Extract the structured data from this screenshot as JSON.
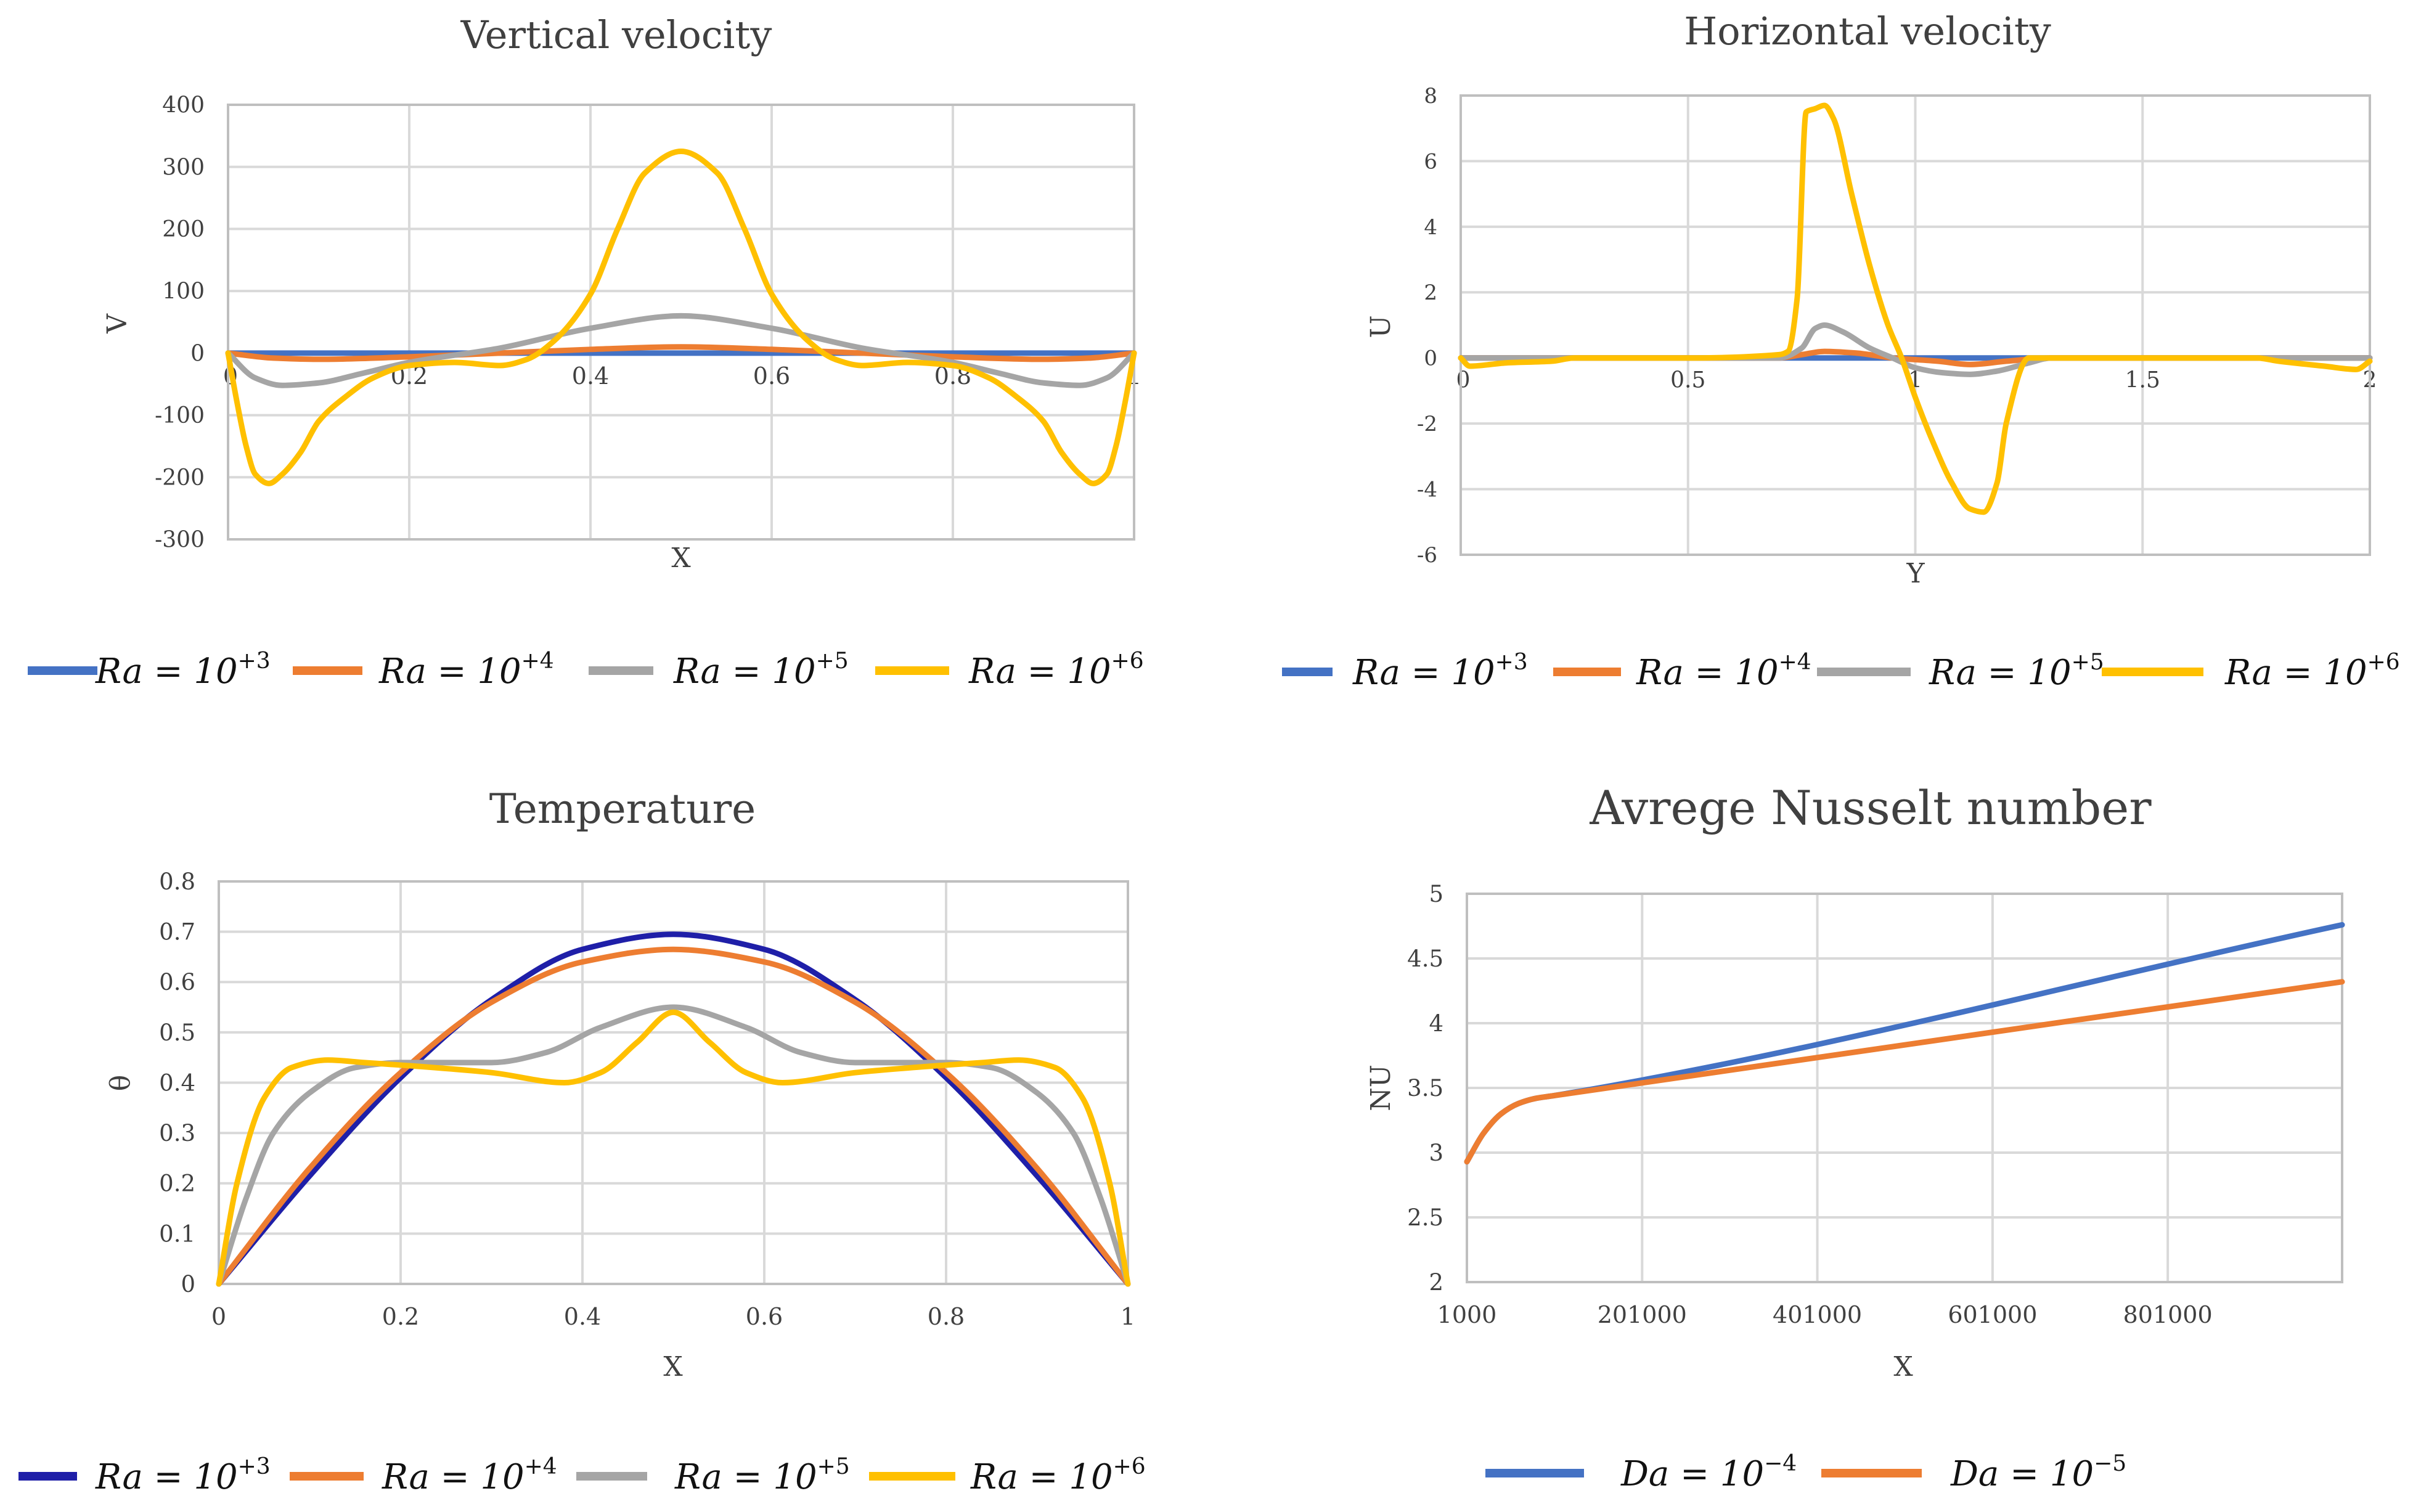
{
  "colors": {
    "blue": "#4472C4",
    "navy": "#1F1FA8",
    "orange": "#ED7D31",
    "gray": "#A5A5A5",
    "yellow": "#FFC000",
    "grid": "#D9D9D9",
    "axis": "#BFBFBF",
    "text": "#404040"
  },
  "chart_data": [
    {
      "id": "vertical",
      "type": "line",
      "title": "Vertical velocity",
      "xlabel": "X",
      "ylabel": "V",
      "xlim": [
        0,
        1
      ],
      "ylim": [
        -300,
        400
      ],
      "xticks": [
        0,
        0.2,
        0.4,
        0.6,
        0.8,
        1
      ],
      "xtick_labels": [
        "0",
        "0.2",
        "0.4",
        "0.6",
        "0.8",
        "1"
      ],
      "yticks": [
        400,
        300,
        200,
        100,
        0,
        -100,
        -200,
        -300
      ],
      "ytick_labels": [
        "400",
        "300",
        "200",
        "100",
        "0",
        "-100",
        "-200",
        "-300"
      ],
      "series": [
        {
          "name": "Ra = 10+3",
          "color": "blue",
          "x": [
            0,
            0.5,
            1
          ],
          "y": [
            0,
            0,
            0
          ]
        },
        {
          "name": "Ra = 10+4",
          "color": "orange",
          "x": [
            0,
            0.05,
            0.1,
            0.2,
            0.3,
            0.4,
            0.5,
            0.6,
            0.7,
            0.8,
            0.9,
            0.95,
            1
          ],
          "y": [
            0,
            -8,
            -10,
            -6,
            0,
            6,
            10,
            6,
            0,
            -6,
            -10,
            -8,
            0
          ]
        },
        {
          "name": "Ra = 10+5",
          "color": "gray",
          "x": [
            0,
            0.03,
            0.06,
            0.1,
            0.15,
            0.2,
            0.3,
            0.4,
            0.5,
            0.6,
            0.7,
            0.8,
            0.85,
            0.9,
            0.94,
            0.97,
            1
          ],
          "y": [
            0,
            -40,
            -52,
            -48,
            -32,
            -15,
            8,
            40,
            60,
            40,
            8,
            -15,
            -32,
            -48,
            -52,
            -40,
            0
          ]
        },
        {
          "name": "Ra = 10+6",
          "color": "yellow",
          "x": [
            0,
            0.01,
            0.02,
            0.03,
            0.045,
            0.06,
            0.08,
            0.1,
            0.13,
            0.16,
            0.2,
            0.25,
            0.3,
            0.33,
            0.36,
            0.4,
            0.43,
            0.46,
            0.5,
            0.54,
            0.57,
            0.6,
            0.64,
            0.67,
            0.7,
            0.75,
            0.8,
            0.84,
            0.87,
            0.9,
            0.92,
            0.94,
            0.955,
            0.97,
            0.98,
            0.99,
            1
          ],
          "y": [
            0,
            -80,
            -150,
            -195,
            -210,
            -195,
            -160,
            -110,
            -70,
            -40,
            -20,
            -15,
            -20,
            -10,
            20,
            95,
            200,
            290,
            325,
            290,
            200,
            95,
            20,
            -10,
            -20,
            -15,
            -20,
            -40,
            -70,
            -110,
            -160,
            -195,
            -210,
            -195,
            -150,
            -80,
            0
          ]
        }
      ],
      "legend": [
        "Ra = 10",
        "Ra = 10",
        "Ra = 10",
        "Ra = 10"
      ],
      "legend_exp": [
        "+3",
        "+4",
        "+5",
        "+6"
      ]
    },
    {
      "id": "horizontal",
      "type": "line",
      "title": "Horizontal velocity",
      "xlabel": "Y",
      "ylabel": "U",
      "xlim": [
        0,
        2
      ],
      "ylim": [
        -6,
        8
      ],
      "xticks": [
        0,
        0.5,
        1,
        1.5,
        2
      ],
      "xtick_labels": [
        "0",
        "0.5",
        "1",
        "1.5",
        "2"
      ],
      "yticks": [
        8,
        6,
        4,
        2,
        0,
        -2,
        -4,
        -6
      ],
      "ytick_labels": [
        "8",
        "6",
        "4",
        "2",
        "0",
        "-2",
        "-4",
        "-6"
      ],
      "series": [
        {
          "name": "Ra = 10+3",
          "color": "blue",
          "x": [
            0,
            1,
            2
          ],
          "y": [
            0,
            0,
            0
          ]
        },
        {
          "name": "Ra = 10+4",
          "color": "orange",
          "x": [
            0,
            0.7,
            0.75,
            0.8,
            0.87,
            0.95,
            1.05,
            1.12,
            1.2,
            1.3,
            2
          ],
          "y": [
            0,
            0,
            0.1,
            0.2,
            0.15,
            0,
            -0.1,
            -0.2,
            -0.1,
            0,
            0
          ]
        },
        {
          "name": "Ra = 10+5",
          "color": "gray",
          "x": [
            0,
            0.7,
            0.75,
            0.78,
            0.8,
            0.84,
            0.9,
            0.95,
            1.0,
            1.06,
            1.12,
            1.18,
            1.25,
            1.3,
            2
          ],
          "y": [
            0,
            0,
            0.3,
            0.9,
            1.0,
            0.8,
            0.3,
            0,
            -0.3,
            -0.45,
            -0.5,
            -0.4,
            -0.15,
            0,
            0
          ]
        },
        {
          "name": "Ra = 10+6",
          "color": "yellow",
          "x": [
            0,
            0.02,
            0.1,
            0.2,
            0.25,
            0.5,
            0.7,
            0.72,
            0.74,
            0.76,
            0.78,
            0.8,
            0.82,
            0.86,
            0.9,
            0.94,
            0.97,
            1.0,
            1.04,
            1.08,
            1.12,
            1.15,
            1.18,
            1.2,
            1.25,
            1.5,
            1.75,
            1.8,
            1.9,
            1.97,
            2
          ],
          "y": [
            0,
            -0.25,
            -0.15,
            -0.1,
            0,
            0,
            0.1,
            0.2,
            1.8,
            7.5,
            7.6,
            7.7,
            7.3,
            5.0,
            2.8,
            1.0,
            0,
            -1.2,
            -2.6,
            -3.8,
            -4.6,
            -4.7,
            -3.8,
            -2.0,
            0,
            0,
            0,
            -0.1,
            -0.25,
            -0.35,
            -0.1
          ]
        }
      ],
      "legend": [
        "Ra = 10",
        "Ra = 10",
        "Ra = 10",
        "Ra = 10"
      ],
      "legend_exp": [
        "+3",
        "+4",
        "+5",
        "+6"
      ]
    },
    {
      "id": "temperature",
      "type": "line",
      "title": "Temperature",
      "xlabel": "X",
      "ylabel": "θ",
      "xlim": [
        0,
        1
      ],
      "ylim": [
        0,
        0.8
      ],
      "xticks": [
        0,
        0.2,
        0.4,
        0.6,
        0.8,
        1
      ],
      "xtick_labels": [
        "0",
        "0.2",
        "0.4",
        "0.6",
        "0.8",
        "1"
      ],
      "yticks": [
        0.8,
        0.7,
        0.6,
        0.5,
        0.4,
        0.3,
        0.2,
        0.1,
        0
      ],
      "ytick_labels": [
        "0.8",
        "0.7",
        "0.6",
        "0.5",
        "0.4",
        "0.3",
        "0.2",
        "0.1",
        "0"
      ],
      "series": [
        {
          "name": "Ra = 10+3",
          "color": "navy",
          "x": [
            0,
            0.1,
            0.2,
            0.3,
            0.4,
            0.5,
            0.6,
            0.7,
            0.8,
            0.9,
            1
          ],
          "y": [
            0,
            0.215,
            0.41,
            0.565,
            0.665,
            0.695,
            0.665,
            0.565,
            0.41,
            0.215,
            0
          ]
        },
        {
          "name": "Ra = 10+4",
          "color": "orange",
          "x": [
            0,
            0.1,
            0.2,
            0.3,
            0.4,
            0.5,
            0.6,
            0.7,
            0.8,
            0.9,
            1
          ],
          "y": [
            0,
            0.23,
            0.42,
            0.56,
            0.64,
            0.665,
            0.64,
            0.56,
            0.42,
            0.23,
            0
          ]
        },
        {
          "name": "Ra = 10+5",
          "color": "gray",
          "x": [
            0,
            0.03,
            0.06,
            0.1,
            0.15,
            0.2,
            0.3,
            0.36,
            0.42,
            0.5,
            0.58,
            0.64,
            0.7,
            0.8,
            0.85,
            0.9,
            0.94,
            0.97,
            1
          ],
          "y": [
            0,
            0.17,
            0.3,
            0.38,
            0.43,
            0.44,
            0.44,
            0.46,
            0.51,
            0.55,
            0.51,
            0.46,
            0.44,
            0.44,
            0.43,
            0.38,
            0.3,
            0.17,
            0
          ]
        },
        {
          "name": "Ra = 10+6",
          "color": "yellow",
          "x": [
            0,
            0.02,
            0.05,
            0.08,
            0.12,
            0.16,
            0.2,
            0.3,
            0.38,
            0.42,
            0.46,
            0.5,
            0.54,
            0.58,
            0.62,
            0.7,
            0.8,
            0.84,
            0.88,
            0.92,
            0.95,
            0.98,
            1
          ],
          "y": [
            0,
            0.2,
            0.37,
            0.43,
            0.445,
            0.44,
            0.435,
            0.42,
            0.4,
            0.42,
            0.48,
            0.54,
            0.48,
            0.42,
            0.4,
            0.42,
            0.435,
            0.44,
            0.445,
            0.43,
            0.37,
            0.2,
            0
          ]
        }
      ],
      "legend": [
        "Ra = 10",
        "Ra = 10",
        "Ra = 10",
        "Ra = 10"
      ],
      "legend_exp": [
        "+3",
        "+4",
        "+5",
        "+6"
      ]
    },
    {
      "id": "nusselt",
      "type": "line",
      "title": "Avrege Nusselt number",
      "xlabel": "X",
      "ylabel": "NU",
      "xlim": [
        1000,
        1000000
      ],
      "ylim": [
        2,
        5
      ],
      "xticks": [
        1000,
        201000,
        401000,
        601000,
        801000
      ],
      "xtick_labels": [
        "1000",
        "201000",
        "401000",
        "601000",
        "801000"
      ],
      "yticks": [
        5,
        4.5,
        4,
        3.5,
        3,
        2.5,
        2
      ],
      "ytick_labels": [
        "5",
        "4.5",
        "4",
        "3.5",
        "3",
        "2.5",
        "2"
      ],
      "series": [
        {
          "name": "Da = 10-4",
          "color": "blue",
          "x": [
            1000,
            20000,
            40000,
            60000,
            80000,
            100000,
            1000000
          ],
          "y": [
            2.93,
            3.15,
            3.3,
            3.38,
            3.42,
            3.44,
            4.76
          ]
        },
        {
          "name": "Da = 10-5",
          "color": "orange",
          "x": [
            1000,
            20000,
            40000,
            60000,
            80000,
            100000,
            1000000
          ],
          "y": [
            2.93,
            3.15,
            3.3,
            3.38,
            3.42,
            3.44,
            4.32
          ]
        }
      ],
      "legend": [
        "Da = 10",
        "Da = 10"
      ],
      "legend_exp": [
        "−4",
        "−5"
      ]
    }
  ]
}
